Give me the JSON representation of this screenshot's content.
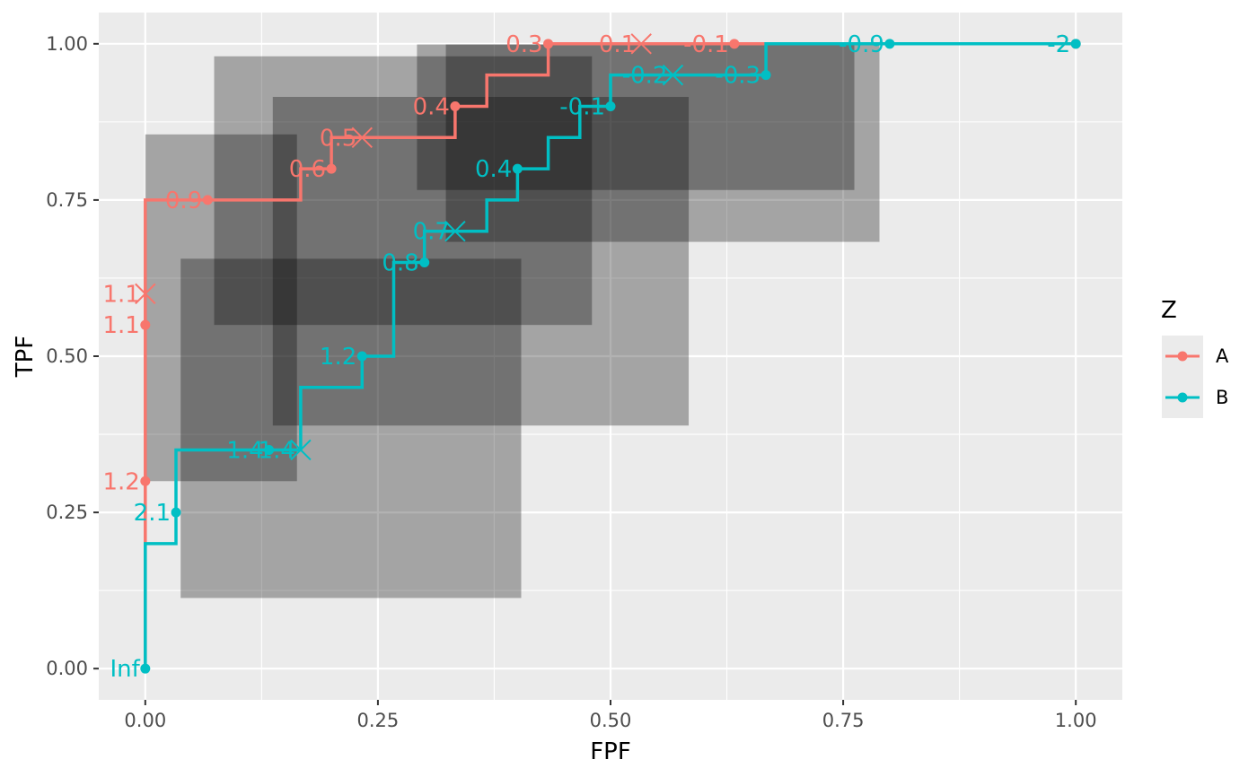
{
  "chart_data": {
    "type": "line",
    "xlabel": "FPF",
    "ylabel": "TPF",
    "xlim": [
      -0.05,
      1.05
    ],
    "ylim": [
      -0.05,
      1.05
    ],
    "x_ticks": [
      {
        "value": 0,
        "label": "0.00"
      },
      {
        "value": 0.25,
        "label": "0.25"
      },
      {
        "value": 0.5,
        "label": "0.50"
      },
      {
        "value": 0.75,
        "label": "0.75"
      },
      {
        "value": 1,
        "label": "1.00"
      }
    ],
    "y_ticks": [
      {
        "value": 0,
        "label": "0.00"
      },
      {
        "value": 0.25,
        "label": "0.25"
      },
      {
        "value": 0.5,
        "label": "0.50"
      },
      {
        "value": 0.75,
        "label": "0.75"
      },
      {
        "value": 1,
        "label": "1.00"
      }
    ],
    "grid": true,
    "legend": {
      "title": "Z",
      "position": "right"
    },
    "series": [
      {
        "name": "A",
        "color": "#F8766D",
        "steps": [
          [
            0,
            0
          ],
          [
            0,
            0.3
          ],
          [
            0,
            0.55
          ],
          [
            0,
            0.6
          ],
          [
            0,
            0.75
          ],
          [
            0.033,
            0.75
          ],
          [
            0.067,
            0.75
          ],
          [
            0.167,
            0.75
          ],
          [
            0.167,
            0.8
          ],
          [
            0.2,
            0.8
          ],
          [
            0.2,
            0.85
          ],
          [
            0.233,
            0.85
          ],
          [
            0.333,
            0.85
          ],
          [
            0.333,
            0.9
          ],
          [
            0.367,
            0.9
          ],
          [
            0.367,
            0.95
          ],
          [
            0.433,
            0.95
          ],
          [
            0.433,
            1.0
          ],
          [
            0.533,
            1.0
          ],
          [
            0.633,
            1.0
          ],
          [
            0.767,
            1.0
          ],
          [
            1.0,
            1.0
          ]
        ],
        "points": [
          {
            "x": 0,
            "y": 0.3,
            "label": "1.2"
          },
          {
            "x": 0,
            "y": 0.55,
            "label": "1.1"
          },
          {
            "x": 0.067,
            "y": 0.75,
            "label": "0.9"
          },
          {
            "x": 0.2,
            "y": 0.8,
            "label": "0.6"
          },
          {
            "x": 0.333,
            "y": 0.9,
            "label": "0.4"
          },
          {
            "x": 0.433,
            "y": 1.0,
            "label": "0.3"
          },
          {
            "x": 0.633,
            "y": 1.0,
            "label": "-0.1"
          },
          {
            "x": 1.0,
            "y": 1.0,
            "label": "-2"
          }
        ],
        "crosses": [
          {
            "x": 0,
            "y": 0.6,
            "label": "1.1"
          },
          {
            "x": 0.233,
            "y": 0.85,
            "label": "0.5"
          },
          {
            "x": 0.533,
            "y": 1.0,
            "label": "0.1"
          }
        ]
      },
      {
        "name": "B",
        "color": "#00BFC4",
        "steps": [
          [
            0,
            0
          ],
          [
            0,
            0.2
          ],
          [
            0.033,
            0.2
          ],
          [
            0.033,
            0.25
          ],
          [
            0.033,
            0.35
          ],
          [
            0.133,
            0.35
          ],
          [
            0.167,
            0.35
          ],
          [
            0.167,
            0.45
          ],
          [
            0.233,
            0.45
          ],
          [
            0.233,
            0.5
          ],
          [
            0.267,
            0.5
          ],
          [
            0.267,
            0.65
          ],
          [
            0.3,
            0.65
          ],
          [
            0.3,
            0.7
          ],
          [
            0.367,
            0.7
          ],
          [
            0.367,
            0.75
          ],
          [
            0.4,
            0.75
          ],
          [
            0.4,
            0.8
          ],
          [
            0.433,
            0.8
          ],
          [
            0.433,
            0.85
          ],
          [
            0.467,
            0.85
          ],
          [
            0.467,
            0.9
          ],
          [
            0.5,
            0.9
          ],
          [
            0.5,
            0.95
          ],
          [
            0.567,
            0.95
          ],
          [
            0.667,
            0.95
          ],
          [
            0.667,
            1.0
          ],
          [
            0.8,
            1.0
          ],
          [
            1.0,
            1.0
          ]
        ],
        "points": [
          {
            "x": 0,
            "y": 0,
            "label": "Inf"
          },
          {
            "x": 0.033,
            "y": 0.25,
            "label": "2.1"
          },
          {
            "x": 0.133,
            "y": 0.35,
            "label": "1.4"
          },
          {
            "x": 0.233,
            "y": 0.5,
            "label": "1.2"
          },
          {
            "x": 0.3,
            "y": 0.65,
            "label": "0.8"
          },
          {
            "x": 0.4,
            "y": 0.8,
            "label": "0.4"
          },
          {
            "x": 0.5,
            "y": 0.9,
            "label": "-0.1"
          },
          {
            "x": 0.667,
            "y": 0.95,
            "label": "-0.3"
          },
          {
            "x": 0.8,
            "y": 1.0,
            "label": "-0.9"
          },
          {
            "x": 1.0,
            "y": 1.0,
            "label": "-2"
          }
        ],
        "crosses": [
          {
            "x": 0.167,
            "y": 0.35,
            "label": "1.4"
          },
          {
            "x": 0.333,
            "y": 0.7,
            "label": "0.7"
          },
          {
            "x": 0.567,
            "y": 0.95,
            "label": "-0.2"
          }
        ]
      }
    ],
    "confidence_regions": [
      {
        "x0": 0.0,
        "x1": 0.163,
        "y0": 0.3,
        "y1": 0.855
      },
      {
        "x0": 0.074,
        "x1": 0.48,
        "y0": 0.55,
        "y1": 0.98
      },
      {
        "x0": 0.292,
        "x1": 0.762,
        "y0": 0.766,
        "y1": 0.999
      },
      {
        "x0": 0.038,
        "x1": 0.404,
        "y0": 0.113,
        "y1": 0.656
      },
      {
        "x0": 0.137,
        "x1": 0.584,
        "y0": 0.389,
        "y1": 0.915
      },
      {
        "x0": 0.323,
        "x1": 0.789,
        "y0": 0.683,
        "y1": 0.999
      }
    ]
  }
}
